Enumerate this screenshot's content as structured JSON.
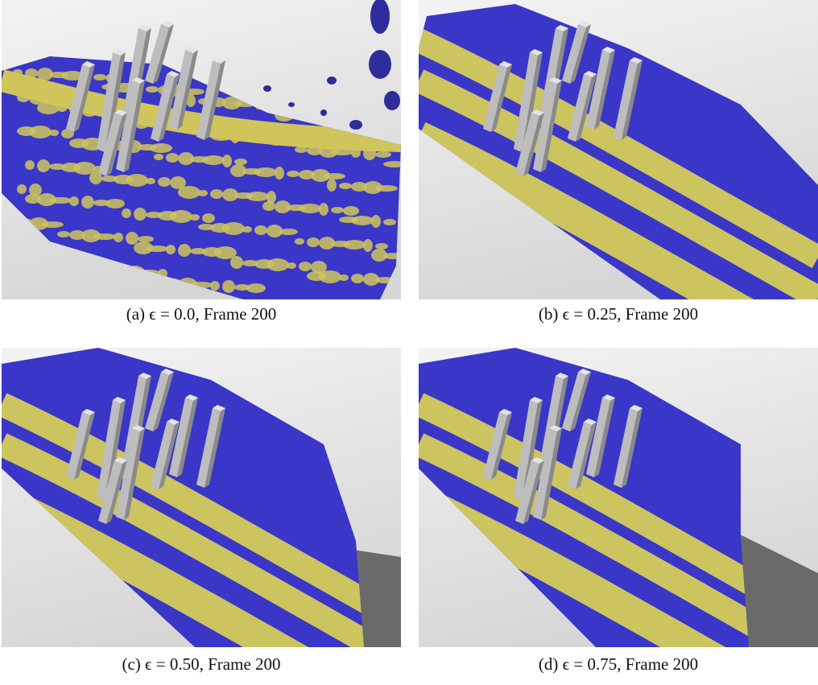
{
  "figure": {
    "panels": [
      {
        "caption": "(a) ϵ = 0.0, Frame 200"
      },
      {
        "caption": "(b) ϵ = 0.25, Frame 200"
      },
      {
        "caption": "(c) ϵ = 0.50, Frame 200"
      },
      {
        "caption": "(d) ϵ = 0.75, Frame 200"
      }
    ]
  }
}
